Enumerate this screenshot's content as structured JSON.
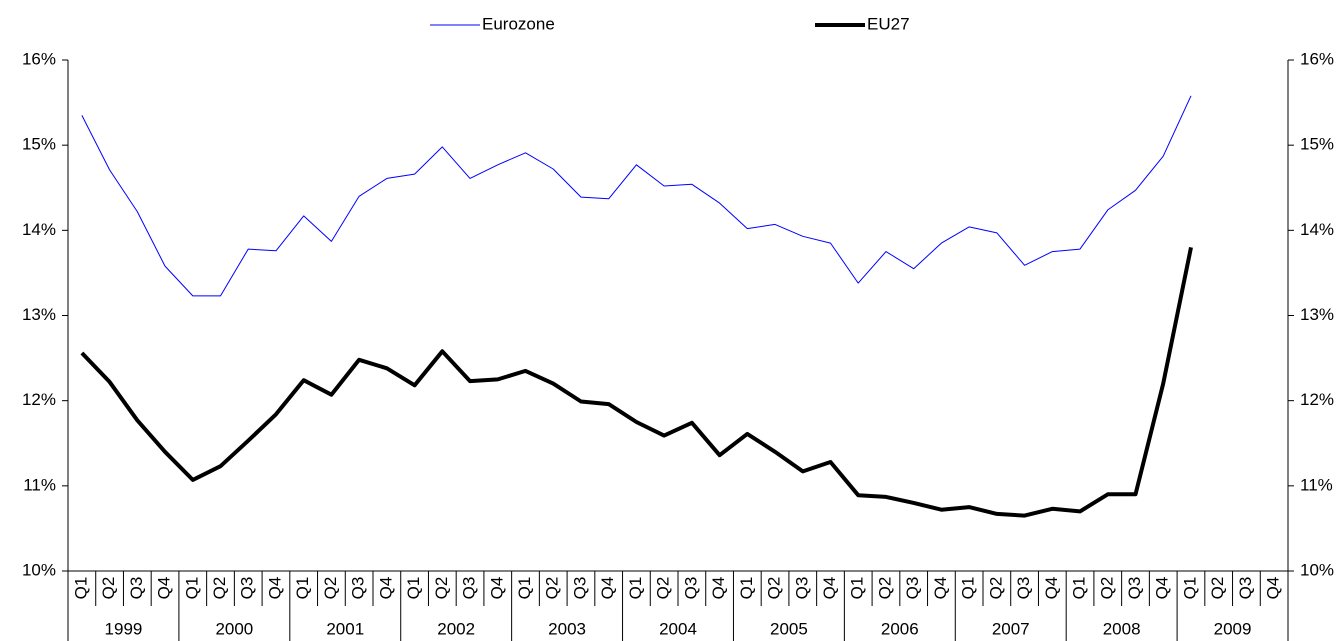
{
  "chart_data": {
    "type": "line",
    "categories": [
      "Q1",
      "Q2",
      "Q3",
      "Q4",
      "Q1",
      "Q2",
      "Q3",
      "Q4",
      "Q1",
      "Q2",
      "Q3",
      "Q4",
      "Q1",
      "Q2",
      "Q3",
      "Q4",
      "Q1",
      "Q2",
      "Q3",
      "Q4",
      "Q1",
      "Q2",
      "Q3",
      "Q4",
      "Q1",
      "Q2",
      "Q3",
      "Q4",
      "Q1",
      "Q2",
      "Q3",
      "Q4",
      "Q1",
      "Q2",
      "Q3",
      "Q4",
      "Q1",
      "Q2",
      "Q3",
      "Q4",
      "Q1",
      "Q2",
      "Q3",
      "Q4"
    ],
    "years": [
      "1999",
      "2000",
      "2001",
      "2002",
      "2003",
      "2004",
      "2005",
      "2006",
      "2007",
      "2008",
      "2009"
    ],
    "series": [
      {
        "name": "Eurozone",
        "color": "#0000ff",
        "width": 1,
        "values": [
          15.35,
          14.71,
          14.22,
          13.58,
          13.23,
          13.23,
          13.78,
          13.76,
          14.17,
          13.87,
          14.4,
          14.61,
          14.66,
          14.98,
          14.61,
          14.77,
          14.91,
          14.72,
          14.39,
          14.37,
          14.77,
          14.52,
          14.54,
          14.32,
          14.02,
          14.07,
          13.93,
          13.85,
          13.38,
          13.75,
          13.55,
          13.85,
          14.04,
          13.97,
          13.59,
          13.75,
          13.78,
          14.24,
          14.47,
          14.87,
          15.58,
          null,
          null,
          null
        ]
      },
      {
        "name": "EU27",
        "color": "#000000",
        "width": 4,
        "values": [
          12.56,
          12.22,
          11.77,
          11.4,
          11.07,
          11.23,
          11.53,
          11.84,
          12.24,
          12.07,
          12.48,
          12.38,
          12.18,
          12.58,
          12.23,
          12.25,
          12.35,
          12.2,
          11.99,
          11.96,
          11.75,
          11.59,
          11.74,
          11.36,
          11.61,
          11.4,
          11.17,
          11.28,
          10.89,
          10.87,
          10.8,
          10.72,
          10.75,
          10.67,
          10.65,
          10.73,
          10.7,
          10.9,
          10.9,
          12.2,
          13.8,
          null,
          null,
          null
        ]
      }
    ],
    "ylim": [
      10,
      16
    ],
    "yticks": [
      {
        "value": 10,
        "label": "10%"
      },
      {
        "value": 11,
        "label": "11%"
      },
      {
        "value": 12,
        "label": "12%"
      },
      {
        "value": 13,
        "label": "13%"
      },
      {
        "value": 14,
        "label": "14%"
      },
      {
        "value": 15,
        "label": "15%"
      },
      {
        "value": 16,
        "label": "16%"
      }
    ],
    "y2lim": [
      10,
      16
    ],
    "y2ticks": [
      {
        "value": 10,
        "label": "10%"
      },
      {
        "value": 11,
        "label": "11%"
      },
      {
        "value": 12,
        "label": "12%"
      },
      {
        "value": 13,
        "label": "13%"
      },
      {
        "value": 14,
        "label": "14%"
      },
      {
        "value": 15,
        "label": "15%"
      },
      {
        "value": 16,
        "label": "16%"
      }
    ],
    "grid": false,
    "legend": "top"
  }
}
